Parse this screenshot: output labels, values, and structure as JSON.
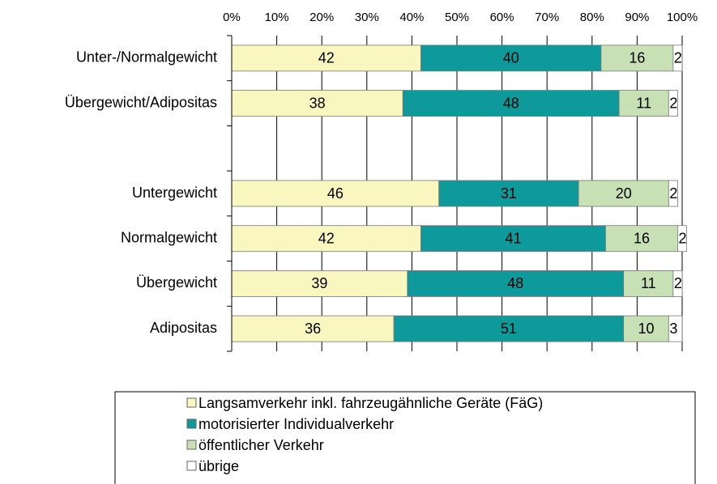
{
  "chart_data": {
    "type": "stacked_barh",
    "categories": [
      "Unter-/Normalgewicht",
      "Übergewicht/Adipositas",
      null,
      "Untergewicht",
      "Normalgewicht",
      "Übergewicht",
      "Adipositas"
    ],
    "series": [
      {
        "name": "Langsamverkehr inkl. fahrzeugähnliche Geräte (FäG)",
        "color": "#faf6bf",
        "values": [
          42,
          38,
          null,
          46,
          42,
          39,
          36
        ]
      },
      {
        "name": "motorisierter Individualverkehr",
        "color": "#0e999b",
        "values": [
          40,
          48,
          null,
          31,
          41,
          48,
          51
        ]
      },
      {
        "name": "öffentlicher Verkehr",
        "color": "#c7e1b5",
        "values": [
          16,
          11,
          null,
          20,
          16,
          11,
          10
        ]
      },
      {
        "name": "übrige",
        "color": "#ffffff",
        "values": [
          2,
          2,
          null,
          2,
          2,
          2,
          3
        ]
      }
    ],
    "xlim": [
      0,
      100
    ],
    "xticks": [
      {
        "value": 0,
        "label": "0%"
      },
      {
        "value": 10,
        "label": "10%"
      },
      {
        "value": 20,
        "label": "20%"
      },
      {
        "value": 30,
        "label": "30%"
      },
      {
        "value": 40,
        "label": "40%"
      },
      {
        "value": 50,
        "label": "50%"
      },
      {
        "value": 60,
        "label": "60%"
      },
      {
        "value": 70,
        "label": "70%"
      },
      {
        "value": 80,
        "label": "80%"
      },
      {
        "value": 90,
        "label": "90%"
      },
      {
        "value": 100,
        "label": "100%"
      }
    ],
    "grid": true
  }
}
